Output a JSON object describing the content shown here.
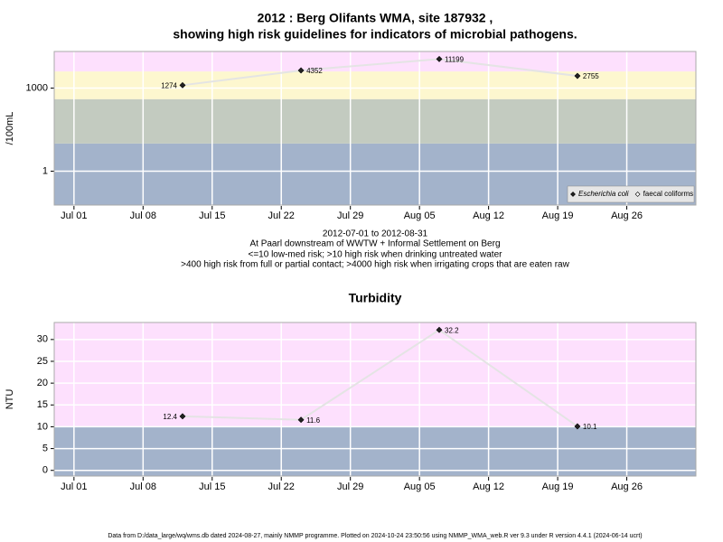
{
  "chart_data": [
    {
      "type": "line",
      "title": [
        "2012 : Berg Olifants WMA, site 187932 ,",
        "showing high risk guidelines for indicators of microbial pathogens."
      ],
      "y_label": "/100mL",
      "x": [
        "2012-07-12",
        "2012-07-24",
        "2012-08-07",
        "2012-08-21"
      ],
      "series": [
        {
          "name": "Escherichia coli",
          "color": "#222222",
          "values": [
            1274,
            4352,
            11199,
            2755
          ]
        },
        {
          "name": "faecal coliforms",
          "color": "#ffffff",
          "values": [
            null,
            null,
            null,
            null
          ]
        }
      ],
      "line_color": "#e4e4e4",
      "xlim": [
        "2012-06-29",
        "2012-09-02"
      ],
      "xticks": [
        {
          "value": "2012-07-01",
          "label": "Jul 01"
        },
        {
          "value": "2012-07-08",
          "label": "Jul 08"
        },
        {
          "value": "2012-07-15",
          "label": "Jul 15"
        },
        {
          "value": "2012-07-22",
          "label": "Jul 22"
        },
        {
          "value": "2012-07-29",
          "label": "Jul 29"
        },
        {
          "value": "2012-08-05",
          "label": "Aug 05"
        },
        {
          "value": "2012-08-12",
          "label": "Aug 12"
        },
        {
          "value": "2012-08-19",
          "label": "Aug 19"
        },
        {
          "value": "2012-08-26",
          "label": "Aug 26"
        }
      ],
      "ylim": [
        0.06,
        21000
      ],
      "yticks": [
        1,
        1000
      ],
      "log_y": true,
      "grid": true,
      "thresholds": [
        10,
        400,
        4000
      ],
      "band_colors": [
        "#a3b3cb",
        "#c3cbc0",
        "#fdf7cf",
        "#fde0fd"
      ],
      "legend": "bottom-right",
      "annotations": [
        "2012-07-01 to 2012-08-31",
        "At Paarl downstream of WWTW + Informal Settlement on Berg",
        "<=10 low-med risk; >10 high risk when drinking untreated water",
        ">400 high risk from full or partial contact; >4000 high risk when irrigating crops that are eaten raw"
      ]
    },
    {
      "type": "line",
      "title": [
        "Turbidity"
      ],
      "y_label": "NTU",
      "x": [
        "2012-07-12",
        "2012-07-24",
        "2012-08-07",
        "2012-08-21"
      ],
      "series": [
        {
          "name": "Turbidity",
          "color": "#222222",
          "values": [
            12.4,
            11.6,
            32.2,
            10.1
          ]
        }
      ],
      "line_color": "#e4e4e4",
      "xlim": [
        "2012-06-29",
        "2012-09-02"
      ],
      "xticks": [
        {
          "value": "2012-07-01",
          "label": "Jul 01"
        },
        {
          "value": "2012-07-08",
          "label": "Jul 08"
        },
        {
          "value": "2012-07-15",
          "label": "Jul 15"
        },
        {
          "value": "2012-07-22",
          "label": "Jul 22"
        },
        {
          "value": "2012-07-29",
          "label": "Jul 29"
        },
        {
          "value": "2012-08-05",
          "label": "Aug 05"
        },
        {
          "value": "2012-08-12",
          "label": "Aug 12"
        },
        {
          "value": "2012-08-19",
          "label": "Aug 19"
        },
        {
          "value": "2012-08-26",
          "label": "Aug 26"
        }
      ],
      "ylim": [
        -1.3,
        33.9
      ],
      "yticks": [
        0,
        5,
        10,
        15,
        20,
        25,
        30
      ],
      "log_y": false,
      "grid": true,
      "thresholds": [
        10
      ],
      "band_colors": [
        "#a3b3cb",
        "#fde0fd"
      ]
    }
  ],
  "footer": "Data from D:/data_large/wq/wms.db dated 2024-08-27, mainly NMMP programme. Plotted on 2024-10-24 23:50:56 using NMMP_WMA_web.R ver 9.3 under R version 4.4.1 (2024-06-14 ucrt)"
}
